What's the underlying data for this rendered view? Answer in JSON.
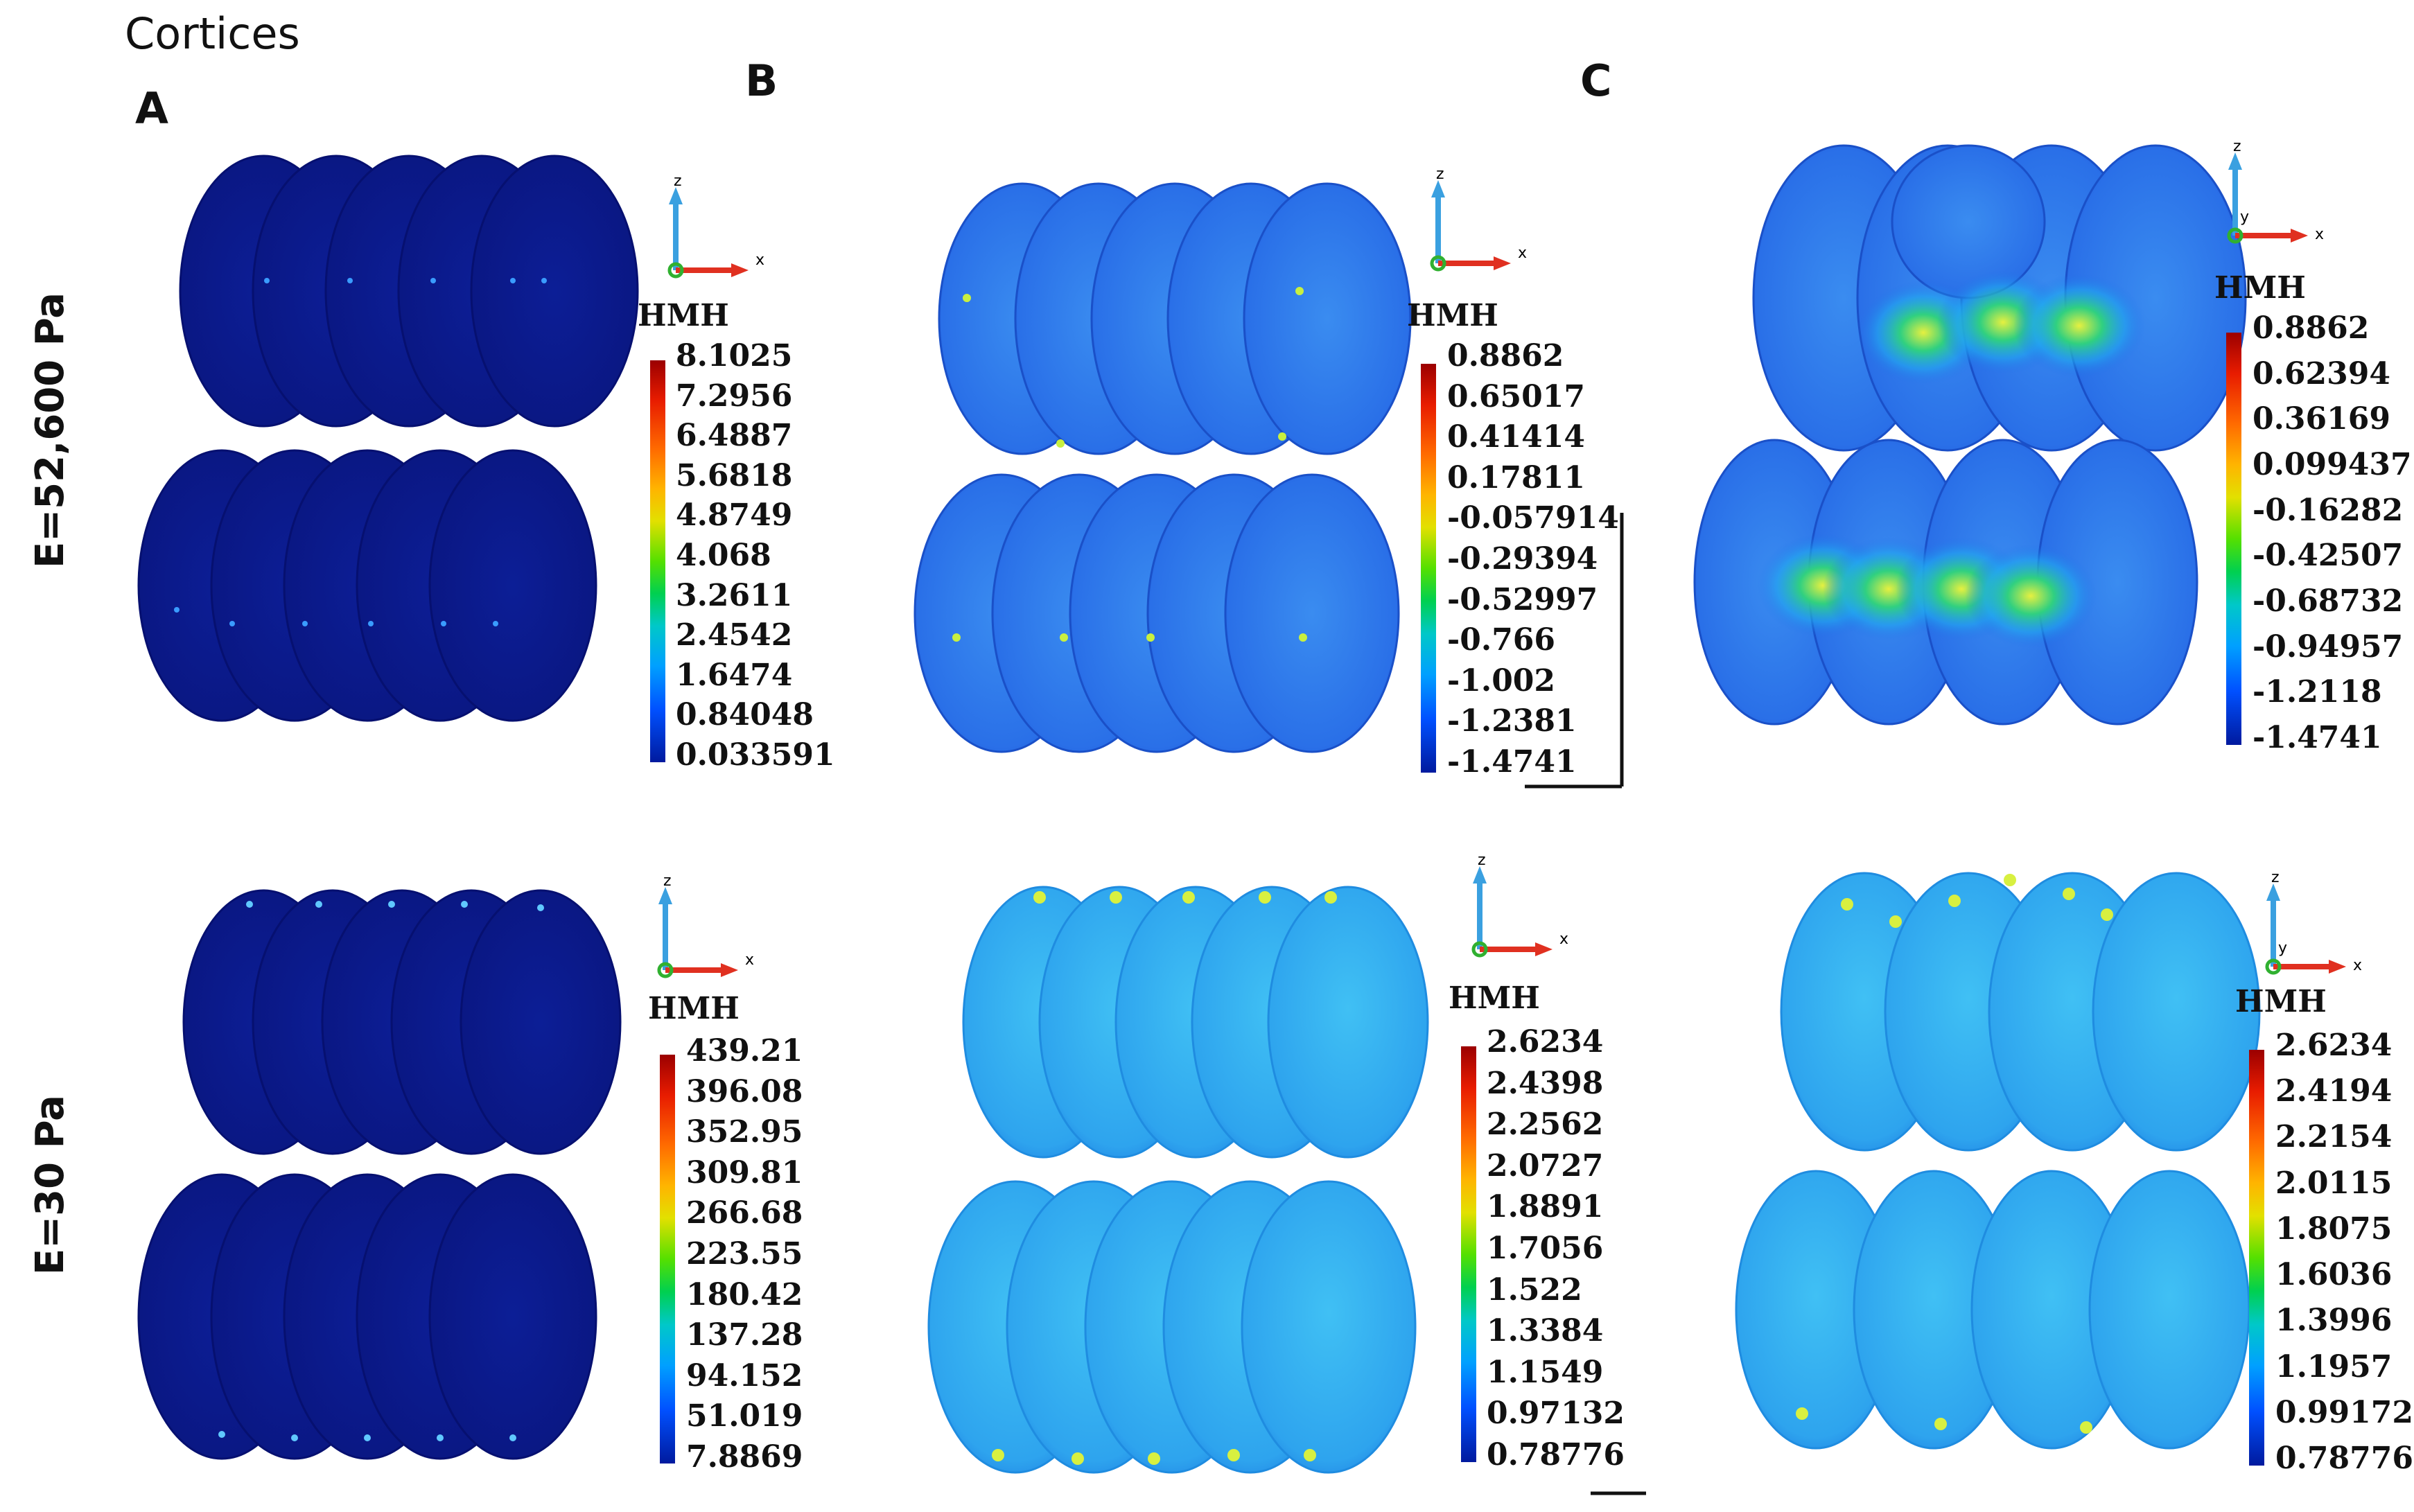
{
  "figure": {
    "title": "Cortices",
    "panels": [
      "A",
      "B",
      "C"
    ],
    "rows": [
      "E=52,600 Pa",
      "E=30  Pa"
    ]
  },
  "colorbars": {
    "row1": {
      "A": {
        "label": "HMH",
        "ticks": [
          "8.1025",
          "7.2956",
          "6.4887",
          "5.6818",
          "4.8749",
          "4.068",
          "3.2611",
          "2.4542",
          "1.6474",
          "0.84048",
          "0.033591"
        ]
      },
      "B": {
        "label": "HMH",
        "ticks": [
          "0.8862",
          "0.65017",
          "0.41414",
          "0.17811",
          "-0.057914",
          "-0.29394",
          "-0.52997",
          "-0.766",
          "-1.002",
          "-1.2381",
          "-1.4741"
        ]
      },
      "C": {
        "label": "HMH",
        "ticks": [
          "0.8862",
          "0.62394",
          "0.36169",
          "0.099437",
          "-0.16282",
          "-0.42507",
          "-0.68732",
          "-0.94957",
          "-1.2118",
          "-1.4741"
        ]
      }
    },
    "row2": {
      "A": {
        "label": "HMH",
        "ticks": [
          "439.21",
          "396.08",
          "352.95",
          "309.81",
          "266.68",
          "223.55",
          "180.42",
          "137.28",
          "94.152",
          "51.019",
          "7.8869"
        ]
      },
      "B": {
        "label": "HMH",
        "ticks": [
          "2.6234",
          "2.4398",
          "2.2562",
          "2.0727",
          "1.8891",
          "1.7056",
          "1.522",
          "1.3384",
          "1.1549",
          "0.97132",
          "0.78776"
        ]
      },
      "C": {
        "label": "HMH",
        "ticks": [
          "2.6234",
          "2.4194",
          "2.2154",
          "2.0115",
          "1.8075",
          "1.6036",
          "1.3996",
          "1.1957",
          "0.99172",
          "0.78776"
        ]
      }
    }
  },
  "axes_triad": {
    "z": "z",
    "x": "x",
    "y": "y"
  },
  "colors": {
    "dark_blue": "#0a1a8c",
    "light_blue": "#2f86f0",
    "cyan": "#35b8f2",
    "hot": "#e8f040"
  }
}
